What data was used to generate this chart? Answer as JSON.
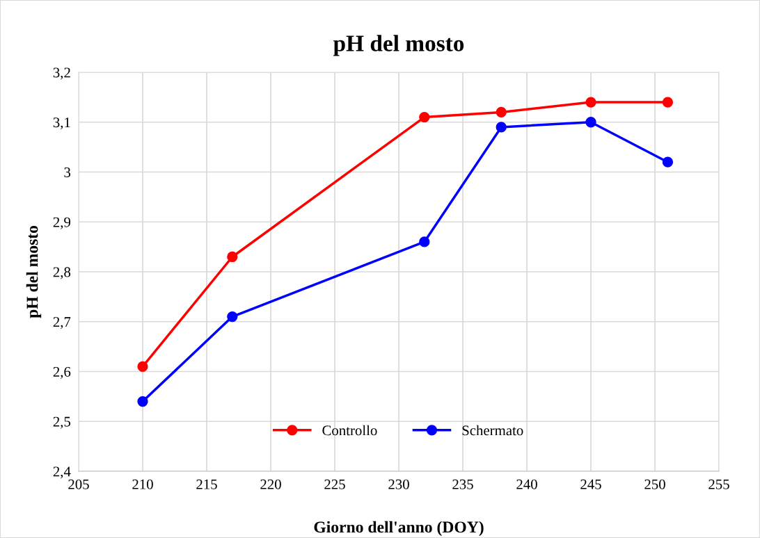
{
  "chart_data": {
    "type": "line",
    "title": "pH del mosto",
    "xlabel": "Giorno dell'anno (DOY)",
    "ylabel": "pH del mosto",
    "x": [
      210,
      217,
      232,
      238,
      245,
      251
    ],
    "series": [
      {
        "name": "Controllo",
        "color": "#ff0000",
        "values": [
          2.61,
          2.83,
          3.11,
          3.12,
          3.14,
          3.14
        ]
      },
      {
        "name": "Schermato",
        "color": "#0000ff",
        "values": [
          2.54,
          2.71,
          2.86,
          3.09,
          3.1,
          3.02
        ]
      }
    ],
    "xlim": [
      205,
      255
    ],
    "xticks": [
      205,
      210,
      215,
      220,
      225,
      230,
      235,
      240,
      245,
      250,
      255
    ],
    "ylim": [
      2.4,
      3.2
    ],
    "yticks": [
      {
        "value": 2.4,
        "label": "2,4"
      },
      {
        "value": 2.5,
        "label": "2,5"
      },
      {
        "value": 2.6,
        "label": "2,6"
      },
      {
        "value": 2.7,
        "label": "2,7"
      },
      {
        "value": 2.8,
        "label": "2,8"
      },
      {
        "value": 2.9,
        "label": "2,9"
      },
      {
        "value": 3.0,
        "label": "3"
      },
      {
        "value": 3.1,
        "label": "3,1"
      },
      {
        "value": 3.2,
        "label": "3,2"
      }
    ],
    "grid": true,
    "legend": "bottom",
    "marker": "circle",
    "line_style": "solid"
  }
}
